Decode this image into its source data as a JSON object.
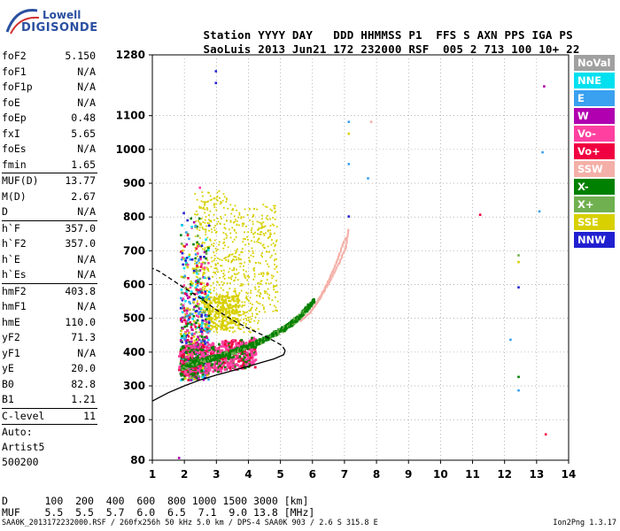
{
  "logo": {
    "line1": "Lowell",
    "line2": "DIGISONDE"
  },
  "header": {
    "labels": [
      "Station",
      "YYYY",
      "DAY",
      "DDD",
      "HHMMSS",
      "P1",
      "FFS",
      "S",
      "AXN",
      "PPS",
      "IGA",
      "PS"
    ],
    "values": [
      "SaoLuis",
      "2013",
      "Jun21",
      "172",
      "232000",
      "RSF",
      "005",
      "2",
      "713",
      "100",
      "10+",
      "22"
    ]
  },
  "params_group1": [
    {
      "k": "foF2",
      "v": "5.150"
    },
    {
      "k": "foF1",
      "v": "N/A"
    },
    {
      "k": "foF1p",
      "v": "N/A"
    },
    {
      "k": "foE",
      "v": "N/A"
    },
    {
      "k": "foEp",
      "v": "0.48"
    },
    {
      "k": "fxI",
      "v": "5.65"
    },
    {
      "k": "foEs",
      "v": "N/A"
    },
    {
      "k": "fmin",
      "v": "1.65"
    }
  ],
  "params_group2": [
    {
      "k": "MUF(D)",
      "v": "13.77"
    },
    {
      "k": "M(D)",
      "v": "2.67"
    },
    {
      "k": "D",
      "v": "N/A"
    }
  ],
  "params_group3": [
    {
      "k": "h`F",
      "v": "357.0"
    },
    {
      "k": "h`F2",
      "v": "357.0"
    },
    {
      "k": "h`E",
      "v": "N/A"
    },
    {
      "k": "h`Es",
      "v": "N/A"
    }
  ],
  "params_group4": [
    {
      "k": "hmF2",
      "v": "403.8"
    },
    {
      "k": "hmF1",
      "v": "N/A"
    },
    {
      "k": "hmE",
      "v": "110.0"
    },
    {
      "k": "yF2",
      "v": "71.3"
    },
    {
      "k": "yF1",
      "v": "N/A"
    },
    {
      "k": "yE",
      "v": "20.0"
    },
    {
      "k": "B0",
      "v": "82.8"
    },
    {
      "k": "B1",
      "v": "1.21"
    }
  ],
  "clevel": {
    "k": "C-level",
    "v": "11"
  },
  "auto_lines": [
    "Auto:",
    "Artist5",
    "500200"
  ],
  "legend": [
    {
      "label": "NoVal",
      "color": "#a0a0a0"
    },
    {
      "label": "NNE",
      "color": "#00e0f0"
    },
    {
      "label": "E",
      "color": "#3aa0f0"
    },
    {
      "label": "W",
      "color": "#b000b0"
    },
    {
      "label": "Vo-",
      "color": "#ff40a0"
    },
    {
      "label": "Vo+",
      "color": "#f00040"
    },
    {
      "label": "SSW",
      "color": "#f4b0a8"
    },
    {
      "label": "X-",
      "color": "#008000"
    },
    {
      "label": "X+",
      "color": "#70b050"
    },
    {
      "label": "SSE",
      "color": "#d8d000"
    },
    {
      "label": "NNW",
      "color": "#2020d0"
    }
  ],
  "table": {
    "row1_label": "D",
    "row1": [
      "100",
      "200",
      "400",
      "600",
      "800",
      "1000",
      "1500",
      "3000",
      "[km]"
    ],
    "row2_label": "MUF",
    "row2": [
      "5.5",
      "5.5",
      "5.7",
      "6.0",
      "6.5",
      "7.1",
      "9.0",
      "13.8",
      "[MHz]"
    ]
  },
  "footer": "SAA0K_2013172232000.RSF / 260fx256h 50 kHz 5.0 km / DPS-4 SAA0K 903 / 2.6 S 315.8 E",
  "footer_right": "Ion2Png 1.3.17",
  "chart_data": {
    "type": "scatter",
    "xlim": [
      1,
      14
    ],
    "ylim": [
      80,
      1280
    ],
    "xticks": [
      "1",
      "2",
      "3",
      "4",
      "5",
      "6",
      "7",
      "8",
      "9",
      "10",
      "11",
      "12",
      "13",
      "14"
    ],
    "yticks": [
      "80",
      "200",
      "300",
      "400",
      "500",
      "600",
      "700",
      "800",
      "900",
      "1000",
      "1100",
      "1280"
    ],
    "grid": "dotted",
    "traces": {
      "o_trace": [
        [
          1.9,
          350
        ],
        [
          2.2,
          362
        ],
        [
          2.6,
          372
        ],
        [
          3.0,
          382
        ],
        [
          3.5,
          397
        ],
        [
          4.0,
          415
        ],
        [
          4.5,
          435
        ],
        [
          5.0,
          462
        ],
        [
          5.3,
          480
        ],
        [
          5.55,
          500
        ],
        [
          5.8,
          525
        ],
        [
          6.0,
          547
        ]
      ],
      "x_trace_ssw": [
        [
          5.6,
          495
        ],
        [
          5.9,
          520
        ],
        [
          6.2,
          560
        ],
        [
          6.5,
          610
        ],
        [
          6.8,
          665
        ],
        [
          7.0,
          710
        ],
        [
          7.1,
          765
        ]
      ],
      "x_trace_ssw2": [
        [
          5.9,
          520
        ],
        [
          6.2,
          565
        ],
        [
          6.4,
          600
        ],
        [
          6.6,
          640
        ],
        [
          6.8,
          690
        ],
        [
          7.0,
          740
        ]
      ]
    },
    "profile": [
      [
        1.0,
        255
      ],
      [
        1.5,
        280
      ],
      [
        2.0,
        300
      ],
      [
        2.5,
        318
      ],
      [
        3.0,
        332
      ],
      [
        3.5,
        345
      ],
      [
        4.0,
        358
      ],
      [
        4.5,
        372
      ],
      [
        4.8,
        380
      ],
      [
        5.1,
        392
      ],
      [
        5.15,
        404
      ]
    ],
    "profile_dashed": [
      [
        5.15,
        404
      ],
      [
        5.05,
        420
      ],
      [
        4.5,
        448
      ],
      [
        4.0,
        470
      ],
      [
        3.5,
        495
      ],
      [
        3.0,
        525
      ],
      [
        2.5,
        560
      ],
      [
        2.0,
        590
      ],
      [
        1.6,
        615
      ],
      [
        1.2,
        640
      ],
      [
        1.0,
        648
      ]
    ]
  }
}
